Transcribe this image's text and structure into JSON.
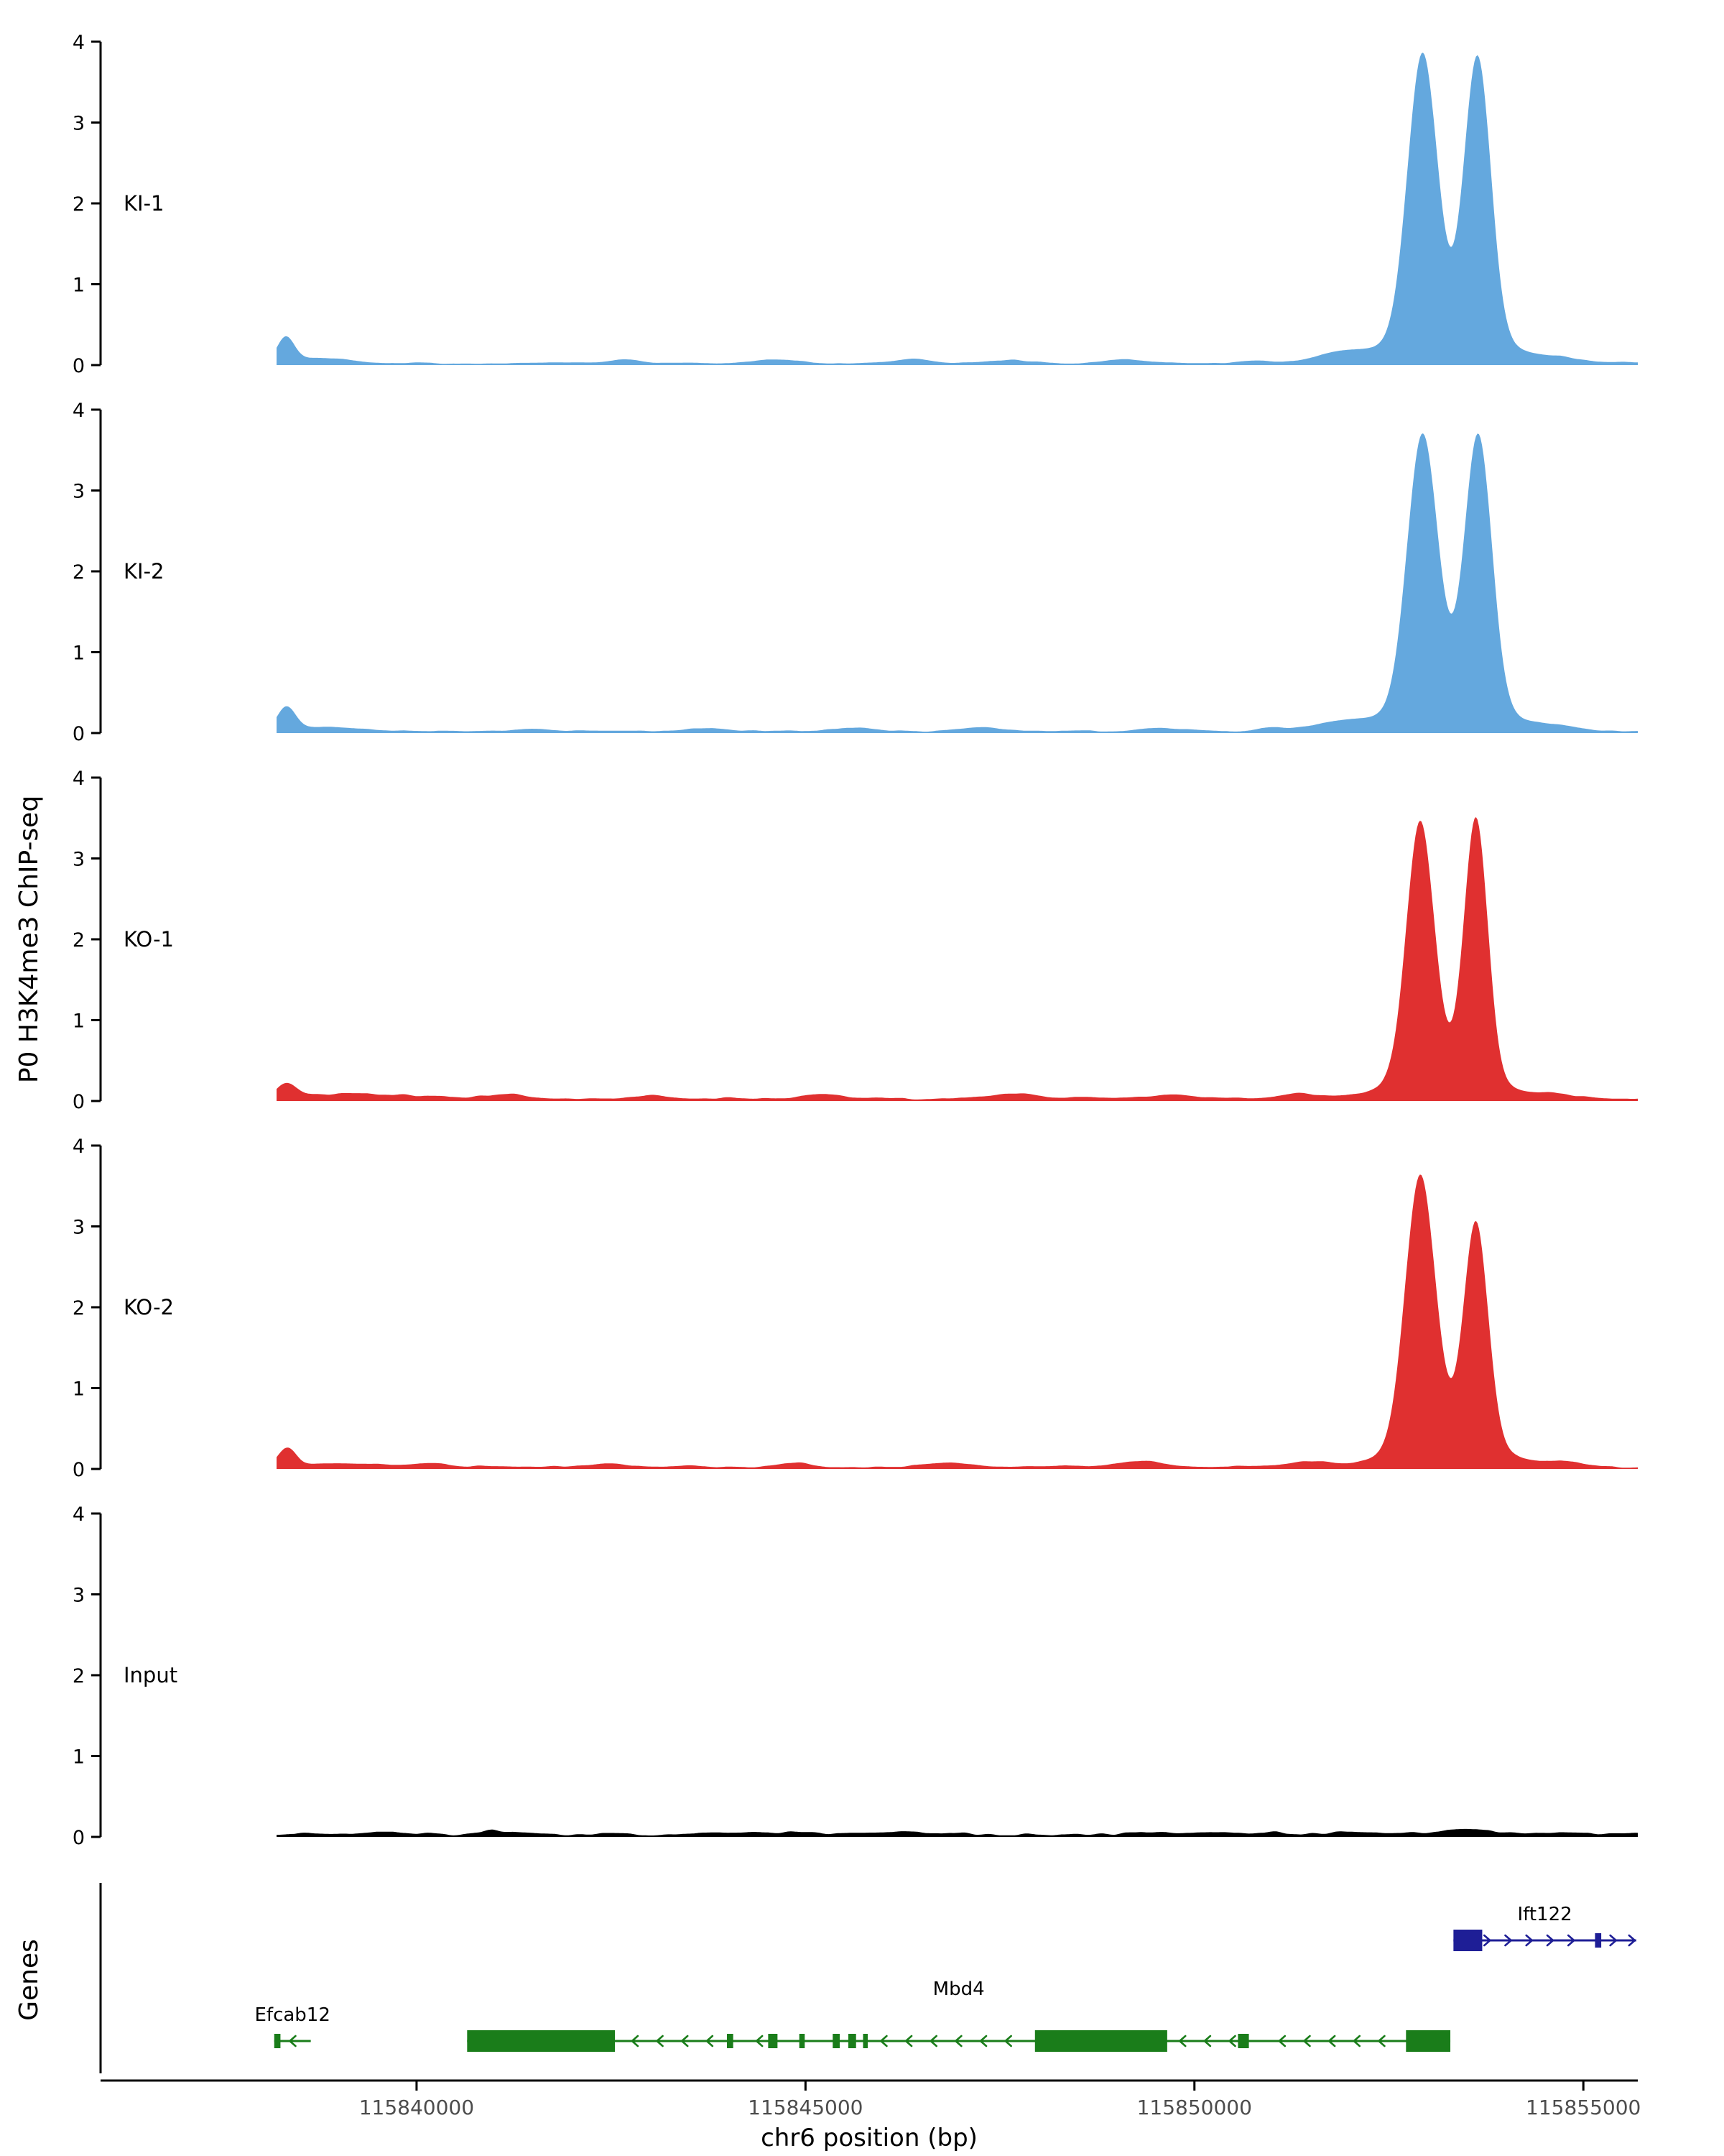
{
  "figure": {
    "y_axis_label": "P0 H3K4me3 ChIP-seq",
    "x_axis_label": "chr6 position (bp)",
    "genes_label": "Genes"
  },
  "chart_data": {
    "type": "area",
    "title": "",
    "x_range": [
      115838200,
      115855700
    ],
    "x_ticks": [
      115840000,
      115845000,
      115850000,
      115855000
    ],
    "x_tick_labels": [
      "115840000",
      "115845000",
      "115850000",
      "115855000"
    ],
    "ylim": [
      0,
      4
    ],
    "y_ticks": [
      0,
      1,
      2,
      3,
      4
    ],
    "axis_color": "#000000",
    "x_tick_label_color": "#4d4d4d",
    "tracks": [
      {
        "name": "KI-1",
        "color": "#64a8de",
        "noise": 0.03,
        "peaks": [
          [
            115838320,
            110,
            0.3
          ],
          [
            115838800,
            380,
            0.06
          ],
          [
            115842700,
            180,
            0.05
          ],
          [
            115844600,
            250,
            0.04
          ],
          [
            115846400,
            200,
            0.05
          ],
          [
            115847600,
            250,
            0.04
          ],
          [
            115849100,
            300,
            0.04
          ],
          [
            115850800,
            200,
            0.03
          ],
          [
            115851900,
            350,
            0.12
          ],
          [
            115852930,
            190,
            3.45
          ],
          [
            115853280,
            620,
            0.45
          ],
          [
            115853640,
            170,
            3.42
          ],
          [
            115854700,
            280,
            0.06
          ]
        ]
      },
      {
        "name": "KI-2",
        "color": "#64a8de",
        "noise": 0.03,
        "peaks": [
          [
            115838330,
            115,
            0.28
          ],
          [
            115838800,
            380,
            0.05
          ],
          [
            115841500,
            200,
            0.03
          ],
          [
            115843700,
            220,
            0.04
          ],
          [
            115845600,
            200,
            0.04
          ],
          [
            115847300,
            250,
            0.05
          ],
          [
            115849500,
            250,
            0.04
          ],
          [
            115851000,
            200,
            0.05
          ],
          [
            115851900,
            350,
            0.1
          ],
          [
            115852930,
            195,
            3.3
          ],
          [
            115853280,
            600,
            0.45
          ],
          [
            115853650,
            175,
            3.3
          ],
          [
            115854700,
            280,
            0.05
          ]
        ]
      },
      {
        "name": "KO-1",
        "color": "#e03030",
        "noise": 0.05,
        "peaks": [
          [
            115838330,
            120,
            0.15
          ],
          [
            115839200,
            700,
            0.05
          ],
          [
            115841200,
            220,
            0.05
          ],
          [
            115843000,
            200,
            0.04
          ],
          [
            115845200,
            220,
            0.05
          ],
          [
            115847800,
            260,
            0.06
          ],
          [
            115849800,
            250,
            0.05
          ],
          [
            115851300,
            220,
            0.06
          ],
          [
            115852900,
            175,
            3.1
          ],
          [
            115853250,
            560,
            0.42
          ],
          [
            115853620,
            150,
            3.15
          ],
          [
            115854700,
            280,
            0.05
          ]
        ]
      },
      {
        "name": "KO-2",
        "color": "#e03030",
        "noise": 0.04,
        "peaks": [
          [
            115838330,
            115,
            0.22
          ],
          [
            115838900,
            400,
            0.05
          ],
          [
            115840200,
            220,
            0.04
          ],
          [
            115842500,
            220,
            0.04
          ],
          [
            115844800,
            220,
            0.05
          ],
          [
            115846900,
            250,
            0.05
          ],
          [
            115849300,
            260,
            0.06
          ],
          [
            115851500,
            240,
            0.07
          ],
          [
            115852900,
            190,
            3.25
          ],
          [
            115853250,
            580,
            0.42
          ],
          [
            115853620,
            155,
            2.7
          ],
          [
            115854700,
            280,
            0.05
          ]
        ]
      },
      {
        "name": "Input",
        "color": "#000000",
        "noise": 0.07,
        "peaks": [
          [
            115841000,
            300,
            0.02
          ],
          [
            115846000,
            300,
            0.025
          ],
          [
            115850500,
            300,
            0.02
          ],
          [
            115853500,
            400,
            0.03
          ]
        ]
      }
    ],
    "genes": [
      {
        "name": "Efcab12",
        "color": "#1a7d1a",
        "strand": "-",
        "row": "lower",
        "start": 115838170,
        "end": 115838640,
        "exons": [
          [
            115838170,
            115838250
          ]
        ]
      },
      {
        "name": "Mbd4",
        "color": "#1a7d1a",
        "strand": "-",
        "row": "lower",
        "start": 115840650,
        "end": 115853290,
        "exons": [
          [
            115840650,
            115842550
          ],
          [
            115843990,
            115844070
          ],
          [
            115844520,
            115844640
          ],
          [
            115844920,
            115844990
          ],
          [
            115845350,
            115845440
          ],
          [
            115845550,
            115845650
          ],
          [
            115845740,
            115845800
          ],
          [
            115847950,
            115849650
          ],
          [
            115850560,
            115850700
          ],
          [
            115852720,
            115853290
          ]
        ]
      },
      {
        "name": "Ift122",
        "color": "#1e1e96",
        "strand": "+",
        "row": "upper",
        "start": 115853330,
        "end": 115855680,
        "exons": [
          [
            115853330,
            115853700
          ],
          [
            115855150,
            115855230
          ]
        ]
      }
    ]
  }
}
